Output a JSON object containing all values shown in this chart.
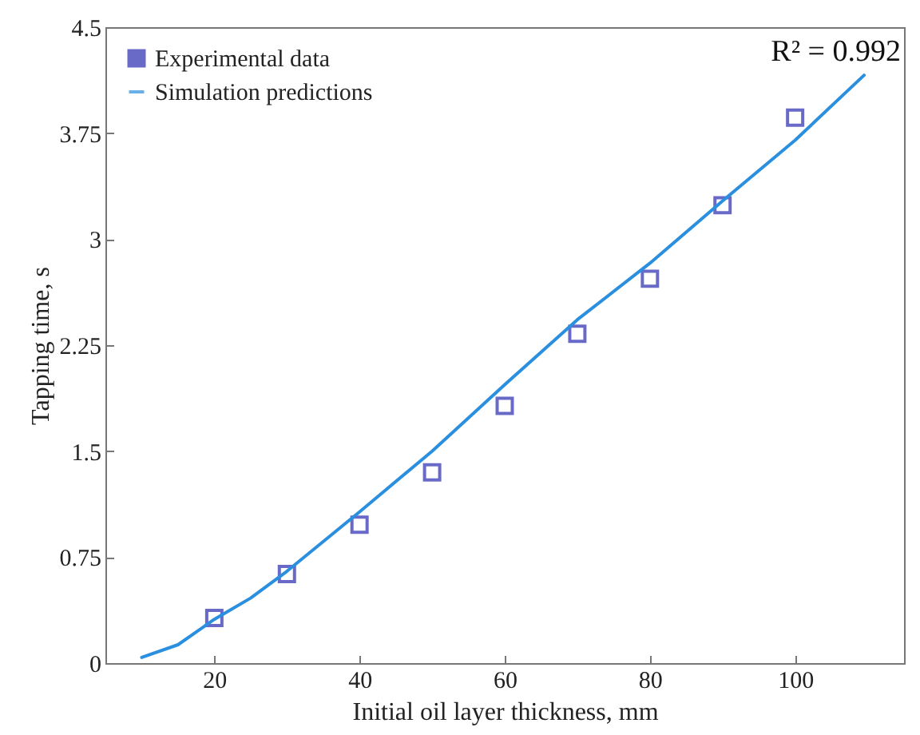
{
  "chart_data": {
    "type": "scatter",
    "xlabel": "Initial oil layer thickness, mm",
    "ylabel": "Tapping time, s",
    "annotations": [
      "R² = 0.992"
    ],
    "xlim": [
      5,
      115
    ],
    "xticks": [
      20,
      40,
      60,
      80,
      100
    ],
    "ylim": [
      0,
      4.5
    ],
    "yticks": [
      0,
      0.75,
      1.5,
      2.25,
      3,
      3.75,
      4.5
    ],
    "grid": false,
    "legend": "top left",
    "series": [
      {
        "name": "Experimental data",
        "marker": "square",
        "color": "#2b2bb0",
        "x": [
          20,
          30,
          40,
          50,
          60,
          70,
          80,
          90,
          100
        ],
        "values": [
          0.32,
          0.63,
          0.98,
          1.35,
          1.82,
          2.33,
          2.72,
          3.24,
          3.86
        ]
      },
      {
        "name": "Simulation predictions",
        "type": "line",
        "line_style": "solid",
        "color": "#2b8fdf",
        "x": [
          10,
          15,
          20,
          25,
          30,
          40,
          50,
          60,
          70,
          80,
          90,
          100,
          109.5
        ],
        "values": [
          0.04,
          0.13,
          0.31,
          0.46,
          0.65,
          1.07,
          1.5,
          1.97,
          2.43,
          2.83,
          3.27,
          3.7,
          4.16
        ]
      }
    ]
  }
}
